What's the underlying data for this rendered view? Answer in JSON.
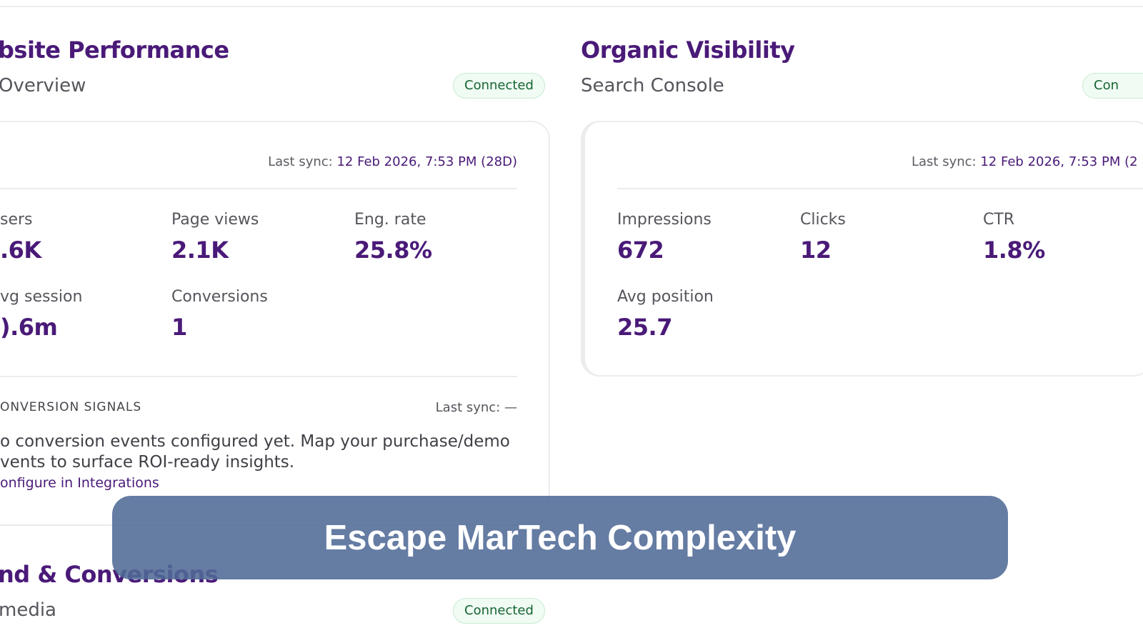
{
  "left_section": {
    "title": "bsite Performance",
    "subtitle": "Overview",
    "badge": "Connected",
    "card": {
      "sync_label": "Last sync:",
      "sync_value": "12 Feb 2026, 7:53 PM (28D)",
      "metrics": [
        {
          "label": "sers",
          "value": ".6K"
        },
        {
          "label": "Page views",
          "value": "2.1K"
        },
        {
          "label": "Eng. rate",
          "value": "25.8%"
        },
        {
          "label": "vg session",
          "value": ").6m"
        },
        {
          "label": "Conversions",
          "value": "1"
        }
      ],
      "signals": {
        "heading": "ONVERSION SIGNALS",
        "sync": "Last sync: —",
        "body_line1": "o conversion events configured yet. Map your purchase/demo",
        "body_line2": "vents to surface ROI-ready insights.",
        "link": "onfigure in Integrations"
      }
    }
  },
  "right_section": {
    "title": "Organic Visibility",
    "subtitle": "Search Console",
    "badge": "Con",
    "card": {
      "sync_label": "Last sync:",
      "sync_value": "12 Feb 2026, 7:53 PM (2",
      "metrics": [
        {
          "label": "Impressions",
          "value": "672"
        },
        {
          "label": "Clicks",
          "value": "12"
        },
        {
          "label": "CTR",
          "value": "1.8%"
        },
        {
          "label": "Avg position",
          "value": "25.7"
        }
      ]
    }
  },
  "bottom_section": {
    "title": "nd & Conversions",
    "subtitle": "media",
    "badge": "Connected"
  },
  "banner": {
    "text": "Escape MarTech Complexity"
  },
  "colors": {
    "accent": "#4a1a78",
    "badge_text": "#166534",
    "badge_bg": "#f0fbf3",
    "banner_bg": "#506a96"
  }
}
